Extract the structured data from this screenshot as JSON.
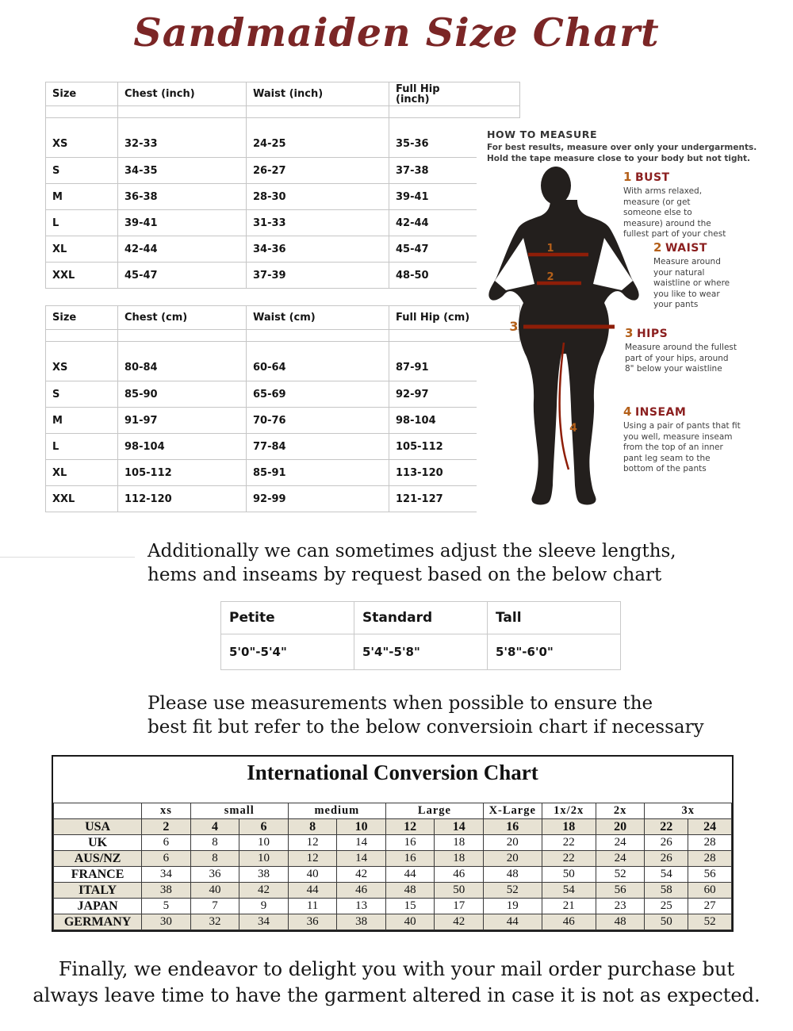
{
  "title": "Sandmaiden Size Chart",
  "size_tables": [
    {
      "headers": {
        "size": "Size",
        "chest": "Chest (inch)",
        "waist": "Waist (inch)",
        "hip": "Full Hip (inch)"
      },
      "rows": [
        {
          "size": "XS",
          "chest": "32-33",
          "waist": "24-25",
          "hip": "35-36"
        },
        {
          "size": "S",
          "chest": "34-35",
          "waist": "26-27",
          "hip": "37-38"
        },
        {
          "size": "M",
          "chest": "36-38",
          "waist": "28-30",
          "hip": "39-41"
        },
        {
          "size": "L",
          "chest": "39-41",
          "waist": "31-33",
          "hip": "42-44"
        },
        {
          "size": "XL",
          "chest": "42-44",
          "waist": "34-36",
          "hip": "45-47"
        },
        {
          "size": "XXL",
          "chest": "45-47",
          "waist": "37-39",
          "hip": "48-50"
        }
      ]
    },
    {
      "headers": {
        "size": "Size",
        "chest": "Chest (cm)",
        "waist": "Waist (cm)",
        "hip": "Full Hip (cm)"
      },
      "rows": [
        {
          "size": "XS",
          "chest": "80-84",
          "waist": "60-64",
          "hip": "87-91"
        },
        {
          "size": "S",
          "chest": "85-90",
          "waist": "65-69",
          "hip": "92-97"
        },
        {
          "size": "M",
          "chest": "91-97",
          "waist": "70-76",
          "hip": "98-104"
        },
        {
          "size": "L",
          "chest": "98-104",
          "waist": "77-84",
          "hip": "105-112"
        },
        {
          "size": "XL",
          "chest": "105-112",
          "waist": "85-91",
          "hip": "113-120"
        },
        {
          "size": "XXL",
          "chest": "112-120",
          "waist": "92-99",
          "hip": "121-127"
        }
      ]
    }
  ],
  "how_to_measure": {
    "heading": "HOW TO MEASURE",
    "intro_line1": "For best results, measure over only your undergarments.",
    "intro_line2": "Hold the tape measure close to your body but not tight.",
    "steps": [
      {
        "num": "1",
        "name": "BUST",
        "text": "With arms relaxed, measure (or get someone else to measure) around the fullest part of your chest"
      },
      {
        "num": "2",
        "name": "WAIST",
        "text": "Measure around your natural waistline or where you like to wear your pants"
      },
      {
        "num": "3",
        "name": "HIPS",
        "text": "Measure around  the fullest part of your hips, around  8\" below your waistline"
      },
      {
        "num": "4",
        "name": "INSEAM",
        "text": "Using a pair of pants that fit you well, measure inseam from the top of an inner pant leg seam to the bottom of the pants"
      }
    ],
    "figure_marker_1": "1",
    "figure_marker_2": "2",
    "figure_marker_3": "3",
    "figure_marker_4": "4"
  },
  "notes": {
    "adjust_line1": "Additionally we can sometimes adjust the sleeve lengths,",
    "adjust_line2": "hems and inseams by request based on the below chart",
    "measure_line1": "Please use measurements when possible to ensure the",
    "measure_line2": "best fit but refer to the below conversioin chart if necessary",
    "final_line1": "Finally, we endeavor to delight you with your mail order purchase but",
    "final_line2": "always leave time to have the garment altered in case it is not as expected."
  },
  "height_table": {
    "headers": [
      "Petite",
      "Standard",
      "Tall"
    ],
    "values": [
      "5'0\"-5'4\"",
      "5'4\"-5'8\"",
      "5'8\"-6'0\""
    ]
  },
  "conversion_chart": {
    "title": "International Conversion Chart",
    "group_headers": [
      {
        "label": "xs",
        "span": 1
      },
      {
        "label": "small",
        "span": 2
      },
      {
        "label": "medium",
        "span": 2
      },
      {
        "label": "Large",
        "span": 2
      },
      {
        "label": "X-Large",
        "span": 1
      },
      {
        "label": "1x/2x",
        "span": 1
      },
      {
        "label": "2x",
        "span": 1
      },
      {
        "label": "3x",
        "span": 2
      }
    ],
    "rows": [
      {
        "country": "USA",
        "values": [
          "2",
          "4",
          "6",
          "8",
          "10",
          "12",
          "14",
          "16",
          "18",
          "20",
          "22",
          "24"
        ]
      },
      {
        "country": "UK",
        "values": [
          "6",
          "8",
          "10",
          "12",
          "14",
          "16",
          "18",
          "20",
          "22",
          "24",
          "26",
          "28"
        ]
      },
      {
        "country": "AUS/NZ",
        "values": [
          "6",
          "8",
          "10",
          "12",
          "14",
          "16",
          "18",
          "20",
          "22",
          "24",
          "26",
          "28"
        ]
      },
      {
        "country": "FRANCE",
        "values": [
          "34",
          "36",
          "38",
          "40",
          "42",
          "44",
          "46",
          "48",
          "50",
          "52",
          "54",
          "56"
        ]
      },
      {
        "country": "ITALY",
        "values": [
          "38",
          "40",
          "42",
          "44",
          "46",
          "48",
          "50",
          "52",
          "54",
          "56",
          "58",
          "60"
        ]
      },
      {
        "country": "JAPAN",
        "values": [
          "5",
          "7",
          "9",
          "11",
          "13",
          "15",
          "17",
          "19",
          "21",
          "23",
          "25",
          "27"
        ]
      },
      {
        "country": "GERMANY",
        "values": [
          "30",
          "32",
          "34",
          "36",
          "38",
          "40",
          "42",
          "44",
          "46",
          "48",
          "50",
          "52"
        ]
      }
    ]
  },
  "colors": {
    "title_maroon": "#7b2626",
    "step_number_orange": "#b4601a",
    "step_name_red": "#8b1f1f",
    "measure_line_red": "#8e1e08",
    "silhouette_black": "#231f1d",
    "conversion_row_beige": "#e7e2d3"
  }
}
